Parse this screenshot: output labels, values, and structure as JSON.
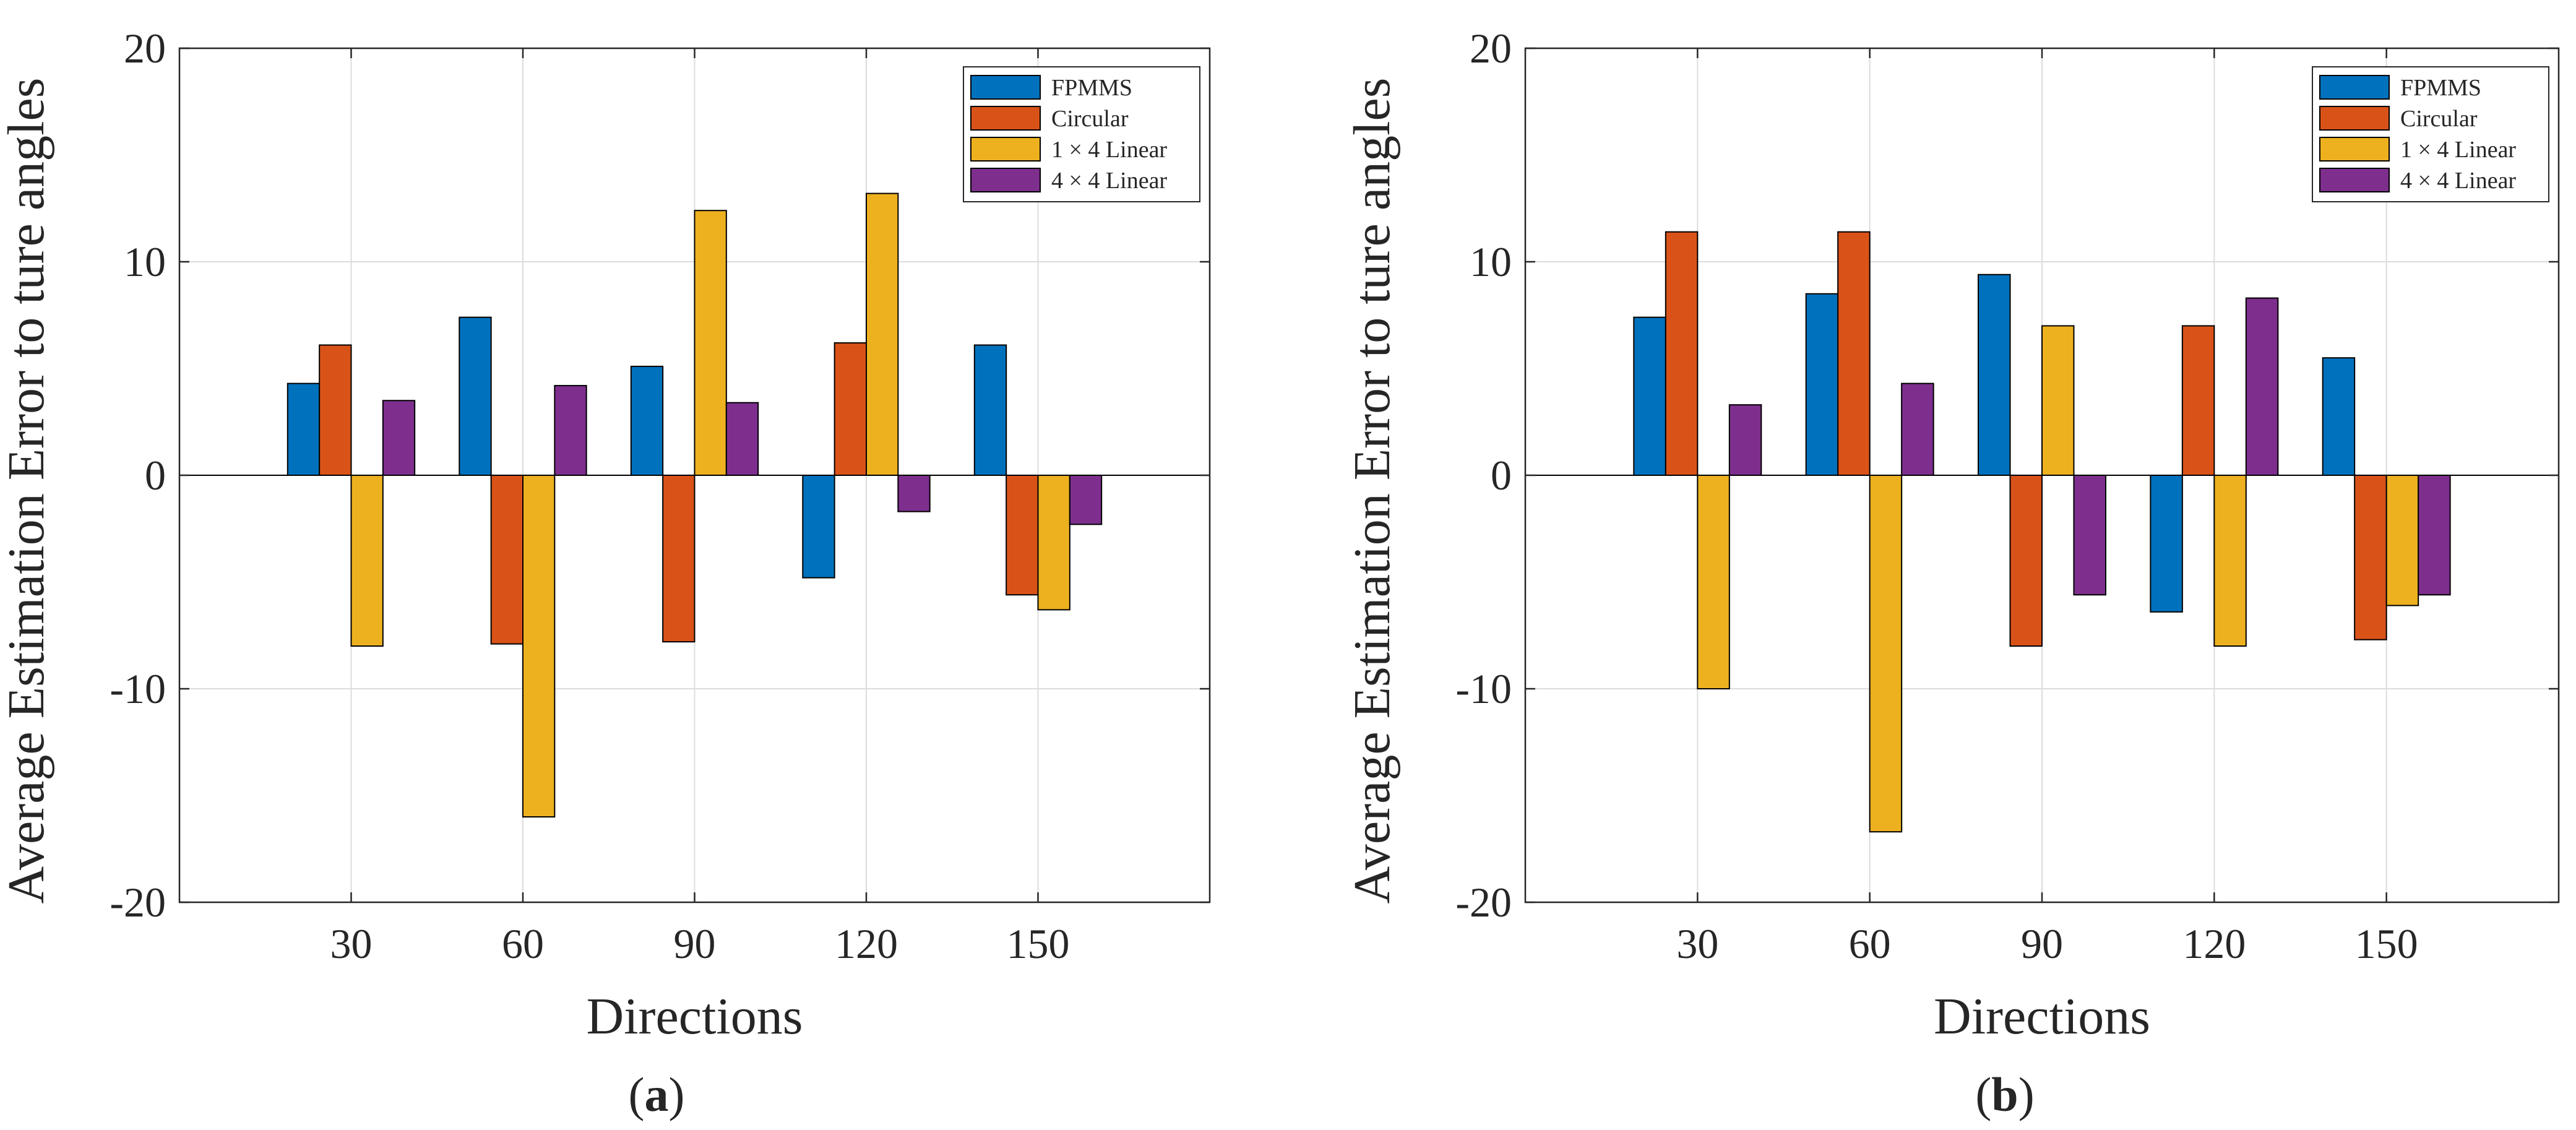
{
  "chart_data": [
    {
      "type": "bar",
      "panel_label": "a",
      "xlabel": "Directions",
      "ylabel": "Average Estimation Error to ture angles",
      "ylim": [
        -20,
        20
      ],
      "yticks": [
        -20,
        -10,
        0,
        10,
        20
      ],
      "ytick_labels": [
        "-20",
        "-10",
        "0",
        "10",
        "20"
      ],
      "categories": [
        "30",
        "60",
        "90",
        "120",
        "150"
      ],
      "grid": true,
      "legend_position": "top-right",
      "series": [
        {
          "name": "FPMMS",
          "color": "#0072BD",
          "values": [
            4.3,
            7.4,
            5.1,
            -4.8,
            6.1
          ]
        },
        {
          "name": "Circular",
          "color": "#D95319",
          "values": [
            6.1,
            -7.9,
            -7.8,
            6.2,
            -5.6
          ]
        },
        {
          "name": "1 × 4 Linear",
          "color": "#EDB120",
          "values": [
            -8.0,
            -16.0,
            12.4,
            13.2,
            -6.3
          ]
        },
        {
          "name": "4 × 4 Linear",
          "color": "#7E2F8E",
          "values": [
            3.5,
            4.2,
            3.4,
            -1.7,
            -2.3
          ]
        }
      ]
    },
    {
      "type": "bar",
      "panel_label": "b",
      "xlabel": "Directions",
      "ylabel": "Average Estimation Error to ture angles",
      "ylim": [
        -20,
        20
      ],
      "yticks": [
        -20,
        -10,
        0,
        10,
        20
      ],
      "ytick_labels": [
        "-20",
        "-10",
        "0",
        "10",
        "20"
      ],
      "categories": [
        "30",
        "60",
        "90",
        "120",
        "150"
      ],
      "grid": true,
      "legend_position": "top-right",
      "series": [
        {
          "name": "FPMMS",
          "color": "#0072BD",
          "values": [
            7.4,
            8.5,
            9.4,
            -6.4,
            5.5
          ]
        },
        {
          "name": "Circular",
          "color": "#D95319",
          "values": [
            11.4,
            11.4,
            -8.0,
            7.0,
            -7.7
          ]
        },
        {
          "name": "1 × 4 Linear",
          "color": "#EDB120",
          "values": [
            -10.0,
            -16.7,
            7.0,
            -8.0,
            -6.1
          ]
        },
        {
          "name": "4 × 4 Linear",
          "color": "#7E2F8E",
          "values": [
            3.3,
            4.3,
            -5.6,
            8.3,
            -5.6
          ]
        }
      ]
    }
  ]
}
